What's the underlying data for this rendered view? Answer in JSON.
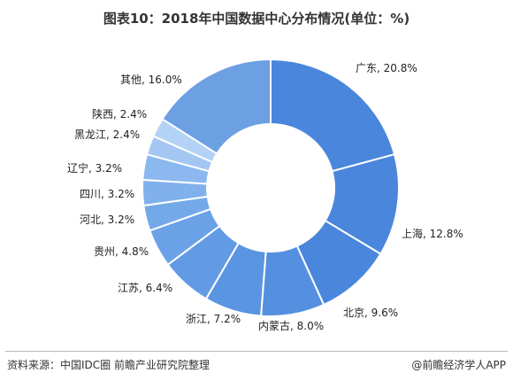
{
  "chart_data": {
    "type": "pie",
    "title": "图表10：2018年中国数据中心分布情况(单位：%)",
    "series": [
      {
        "name": "广东",
        "value": 20.8,
        "label": "广东, 20.8%"
      },
      {
        "name": "上海",
        "value": 12.8,
        "label": "上海, 12.8%"
      },
      {
        "name": "北京",
        "value": 9.6,
        "label": "北京, 9.6%"
      },
      {
        "name": "内蒙古",
        "value": 8.0,
        "label": "内蒙古, 8.0%"
      },
      {
        "name": "浙江",
        "value": 7.2,
        "label": "浙江, 7.2%"
      },
      {
        "name": "江苏",
        "value": 6.4,
        "label": "江苏, 6.4%"
      },
      {
        "name": "贵州",
        "value": 4.8,
        "label": "贵州, 4.8%"
      },
      {
        "name": "河北",
        "value": 3.2,
        "label": "河北, 3.2%"
      },
      {
        "name": "四川",
        "value": 3.2,
        "label": "四川, 3.2%"
      },
      {
        "name": "辽宁",
        "value": 3.2,
        "label": "辽宁, 3.2%"
      },
      {
        "name": "黑龙江",
        "value": 2.4,
        "label": "黑龙江, 2.4%"
      },
      {
        "name": "陕西",
        "value": 2.4,
        "label": "陕西, 2.4%"
      },
      {
        "name": "其他",
        "value": 16.0,
        "label": "其他, 16.0%"
      }
    ],
    "colors": [
      "#4a86dc",
      "#4a86dc",
      "#4a86dc",
      "#5590e0",
      "#5a95e2",
      "#629be4",
      "#6ba2e7",
      "#74a9e9",
      "#80b1ec",
      "#8bb8ee",
      "#a3c7f2",
      "#b3d2f5",
      "#6d9fe3"
    ],
    "legend": "none"
  },
  "footer": {
    "source": "资料来源：中国IDC圈 前瞻产业研究院整理",
    "brand": "@前瞻经济学人APP"
  }
}
